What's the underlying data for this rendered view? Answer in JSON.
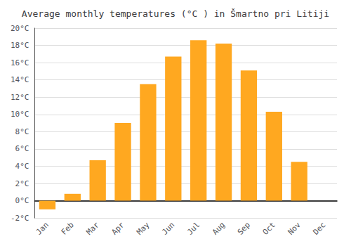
{
  "chart_data": {
    "type": "bar",
    "title": "Average monthly temperatures (°C ) in Šmartno pri Litiji",
    "categories": [
      "Jan",
      "Feb",
      "Mar",
      "Apr",
      "May",
      "Jun",
      "Jul",
      "Aug",
      "Sep",
      "Oct",
      "Nov",
      "Dec"
    ],
    "values": [
      -1.0,
      0.8,
      4.7,
      9.0,
      13.5,
      16.7,
      18.6,
      18.2,
      15.1,
      10.3,
      4.5,
      0.0
    ],
    "color": "#FFA820",
    "ylim": [
      -2,
      20
    ],
    "yticks": [
      {
        "value": -2,
        "label": "-2°C"
      },
      {
        "value": 0,
        "label": "0°C"
      },
      {
        "value": 2,
        "label": "2°C"
      },
      {
        "value": 4,
        "label": "4°C"
      },
      {
        "value": 6,
        "label": "6°C"
      },
      {
        "value": 8,
        "label": "8°C"
      },
      {
        "value": 10,
        "label": "10°C"
      },
      {
        "value": 12,
        "label": "12°C"
      },
      {
        "value": 14,
        "label": "14°C"
      },
      {
        "value": 16,
        "label": "16°C"
      },
      {
        "value": 18,
        "label": "18°C"
      },
      {
        "value": 20,
        "label": "20°C"
      }
    ],
    "grid": true
  }
}
